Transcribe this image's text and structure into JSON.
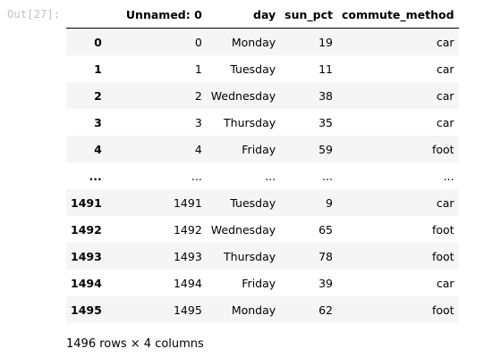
{
  "cell": {
    "prompt": "Out[27]:"
  },
  "dataframe": {
    "columns": [
      "",
      "Unnamed: 0",
      "day",
      "sun_pct",
      "commute_method"
    ],
    "rows": [
      {
        "index": "0",
        "cells": [
          "0",
          "Monday",
          "19",
          "car"
        ]
      },
      {
        "index": "1",
        "cells": [
          "1",
          "Tuesday",
          "11",
          "car"
        ]
      },
      {
        "index": "2",
        "cells": [
          "2",
          "Wednesday",
          "38",
          "car"
        ]
      },
      {
        "index": "3",
        "cells": [
          "3",
          "Thursday",
          "35",
          "car"
        ]
      },
      {
        "index": "4",
        "cells": [
          "4",
          "Friday",
          "59",
          "foot"
        ]
      },
      {
        "index": "...",
        "cells": [
          "...",
          "...",
          "...",
          "..."
        ]
      },
      {
        "index": "1491",
        "cells": [
          "1491",
          "Tuesday",
          "9",
          "car"
        ]
      },
      {
        "index": "1492",
        "cells": [
          "1492",
          "Wednesday",
          "65",
          "foot"
        ]
      },
      {
        "index": "1493",
        "cells": [
          "1493",
          "Thursday",
          "78",
          "foot"
        ]
      },
      {
        "index": "1494",
        "cells": [
          "1494",
          "Friday",
          "39",
          "car"
        ]
      },
      {
        "index": "1495",
        "cells": [
          "1495",
          "Monday",
          "62",
          "foot"
        ]
      }
    ],
    "summary": "1496 rows × 4 columns"
  }
}
